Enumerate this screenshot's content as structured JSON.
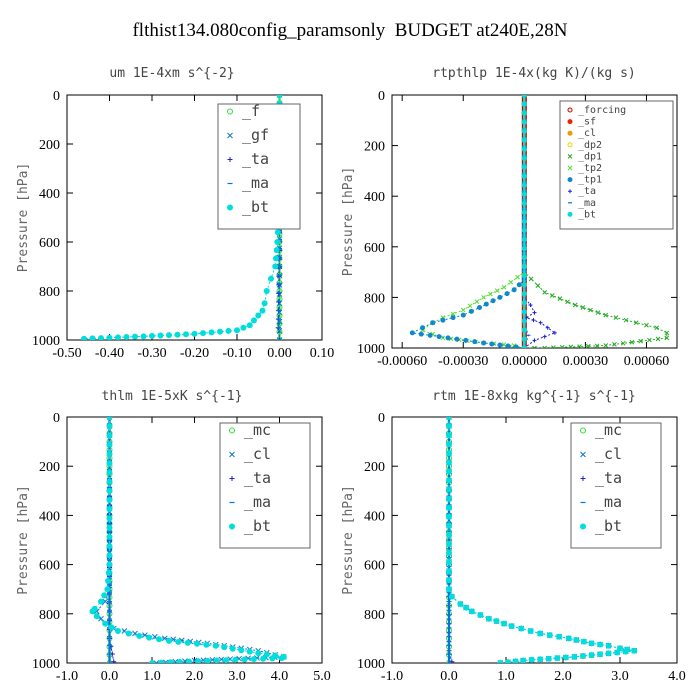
{
  "title": "flthist134.080config_paramsonly  BUDGET at240E,28N",
  "colors": {
    "f": "#33dd33",
    "gf": "#1177cc",
    "ta": "#2222cc",
    "ma": "#0077dd",
    "bt": "#00dddd",
    "mc": "#33dd33",
    "cl": "#1177cc",
    "forcing": "#cc0000",
    "sf": "#ee2200",
    "cl_sm": "#ee9900",
    "dp2": "#dddd00",
    "dp1": "#22aa22",
    "tp2": "#55dd33",
    "tp1": "#1188cc"
  },
  "chart_data": [
    {
      "type": "line",
      "title": "um  1E-4xm s^{-2}",
      "ylabel": "Pressure [hPa]",
      "xlim": [
        -0.5,
        0.1
      ],
      "ylim": [
        1000,
        0
      ],
      "xticks": [
        -0.5,
        -0.4,
        -0.3,
        -0.2,
        -0.1,
        0.0,
        0.1
      ],
      "xtick_labels": [
        "-0.50",
        "-0.40",
        "-0.30",
        "-0.20",
        "-0.10",
        "0.00",
        "0.10"
      ],
      "yticks": [
        0,
        200,
        400,
        600,
        800,
        1000
      ],
      "ytick_labels": [
        "0",
        "200",
        "400",
        "600",
        "800",
        "1000"
      ],
      "legend_position": "top-right",
      "series": [
        {
          "name": "_f",
          "color_key": "f",
          "x": [
            0,
            0,
            0,
            0,
            0,
            0,
            0,
            0,
            0,
            0,
            0
          ],
          "y": [
            0,
            100,
            200,
            300,
            400,
            500,
            600,
            700,
            800,
            900,
            1000
          ]
        },
        {
          "name": "_gf",
          "color_key": "gf",
          "x": [
            0,
            0,
            -0.002,
            -0.005,
            -0.003,
            0,
            0
          ],
          "y": [
            0,
            150,
            200,
            210,
            250,
            400,
            1000
          ]
        },
        {
          "name": "_ta",
          "color_key": "ta",
          "x": [
            0,
            0,
            -0.003,
            0
          ],
          "y": [
            0,
            600,
            950,
            1000
          ]
        },
        {
          "name": "_ma",
          "color_key": "ma",
          "x": [
            0,
            0,
            -0.002,
            0
          ],
          "y": [
            0,
            700,
            950,
            1000
          ]
        },
        {
          "name": "_bt",
          "color_key": "bt",
          "x": [
            0,
            0,
            -0.005,
            -0.01,
            -0.02,
            -0.03,
            -0.035,
            -0.04,
            -0.05,
            -0.06,
            -0.07,
            -0.1,
            -0.2,
            -0.32,
            -0.46
          ],
          "y": [
            0,
            400,
            600,
            700,
            750,
            800,
            850,
            880,
            900,
            920,
            940,
            960,
            975,
            985,
            995
          ]
        }
      ]
    },
    {
      "type": "line",
      "title": "rtpthlp  1E-4x(kg K)/(kg s)",
      "ylabel": "Pressure [hPa]",
      "xlim": [
        -0.00065,
        0.00075
      ],
      "ylim": [
        1000,
        0
      ],
      "xticks": [
        -0.0006,
        -0.0003,
        0.0,
        0.0003,
        0.0006
      ],
      "xtick_labels": [
        "-0.00060",
        "-0.00030",
        "0.00000",
        "0.00030",
        "0.00060"
      ],
      "yticks": [
        0,
        200,
        400,
        600,
        800,
        1000
      ],
      "ytick_labels": [
        "0",
        "200",
        "400",
        "600",
        "800",
        "1000"
      ],
      "legend_position": "top-right",
      "series": [
        {
          "name": "_forcing",
          "color_key": "forcing",
          "x": [
            0,
            0
          ],
          "y": [
            0,
            1000
          ]
        },
        {
          "name": "_sf",
          "color_key": "sf",
          "x": [
            0,
            0,
            0,
            0
          ],
          "y": [
            0,
            940,
            1000,
            1000
          ]
        },
        {
          "name": "_cl",
          "color_key": "cl_sm",
          "x": [
            0,
            0
          ],
          "y": [
            0,
            1000
          ]
        },
        {
          "name": "_dp2",
          "color_key": "dp2",
          "x": [
            0,
            0
          ],
          "y": [
            0,
            1000
          ]
        },
        {
          "name": "_dp1",
          "color_key": "dp1",
          "x": [
            0,
            0,
            0.0001,
            0.00025,
            0.0004,
            0.00055,
            0.00065,
            0.0007,
            0.0007,
            0.0004,
            0.0001,
            0
          ],
          "y": [
            0,
            700,
            780,
            830,
            870,
            900,
            920,
            940,
            960,
            990,
            1000,
            1000
          ]
        },
        {
          "name": "_tp2",
          "color_key": "tp2",
          "x": [
            0,
            0,
            -0.0001,
            -0.0002,
            -0.0003,
            -0.0004,
            -0.00045,
            -0.0005,
            -0.0004,
            -0.0002,
            -5e-05,
            0
          ],
          "y": [
            0,
            700,
            760,
            800,
            850,
            880,
            900,
            930,
            960,
            980,
            990,
            1000
          ]
        },
        {
          "name": "_tp1",
          "color_key": "tp1",
          "x": [
            0,
            0,
            -5e-05,
            -0.00012,
            -0.00022,
            -0.0003,
            -0.00045,
            -0.0005,
            -0.00055,
            -0.0002,
            0
          ],
          "y": [
            0,
            730,
            770,
            800,
            840,
            870,
            900,
            920,
            940,
            980,
            1000
          ]
        },
        {
          "name": "_ta",
          "color_key": "ta",
          "x": [
            0,
            0,
            3e-05,
            5e-05,
            1e-05,
            8e-05,
            0.00015,
            5e-05,
            0
          ],
          "y": [
            0,
            800,
            830,
            860,
            880,
            900,
            940,
            970,
            1000
          ]
        },
        {
          "name": "_ma",
          "color_key": "ma",
          "x": [
            0,
            0,
            2e-05,
            0
          ],
          "y": [
            0,
            900,
            950,
            1000
          ]
        },
        {
          "name": "_bt",
          "color_key": "bt",
          "x": [
            0,
            0
          ],
          "y": [
            0,
            1000
          ]
        }
      ]
    },
    {
      "type": "line",
      "title": "thlm  1E-5xK s^{-1}",
      "ylabel": "Pressure [hPa]",
      "xlim": [
        -1.0,
        5.0
      ],
      "ylim": [
        1000,
        0
      ],
      "xticks": [
        -1,
        0,
        1,
        2,
        3,
        4,
        5
      ],
      "xtick_labels": [
        "-1.0",
        "0.0",
        "1.0",
        "2.0",
        "3.0",
        "4.0",
        "5.0"
      ],
      "yticks": [
        0,
        200,
        400,
        600,
        800,
        1000
      ],
      "ytick_labels": [
        "0",
        "200",
        "400",
        "600",
        "800",
        "1000"
      ],
      "legend_position": "top-right",
      "series": [
        {
          "name": "_mc",
          "color_key": "mc",
          "x": [
            0,
            0,
            0,
            0,
            0,
            0,
            0,
            0,
            0,
            0,
            0
          ],
          "y": [
            0,
            100,
            200,
            300,
            400,
            500,
            600,
            700,
            800,
            900,
            1000
          ]
        },
        {
          "name": "_cl",
          "color_key": "cl",
          "x": [
            0,
            0,
            -0.1,
            -0.3,
            -0.2,
            0.1,
            0.6,
            1.3,
            2.3,
            3.5,
            4.1,
            2.0,
            1.1
          ],
          "y": [
            0,
            700,
            750,
            790,
            820,
            860,
            880,
            900,
            920,
            950,
            975,
            990,
            1000
          ]
        },
        {
          "name": "_ta",
          "color_key": "ta",
          "x": [
            0,
            0,
            0.1,
            0
          ],
          "y": [
            0,
            900,
            995,
            1000
          ]
        },
        {
          "name": "_ma",
          "color_key": "ma",
          "x": [
            0,
            0,
            0
          ],
          "y": [
            0,
            500,
            1000
          ]
        },
        {
          "name": "_bt",
          "color_key": "bt",
          "x": [
            0,
            0,
            -0.05,
            -0.2,
            -0.35,
            -0.4,
            -0.3,
            -0.1,
            0.2,
            0.7,
            1.4,
            2.5,
            3.5,
            4.1,
            4.05,
            1.0
          ],
          "y": [
            0,
            600,
            700,
            750,
            780,
            790,
            810,
            840,
            870,
            890,
            910,
            930,
            960,
            975,
            980,
            1000
          ]
        }
      ]
    },
    {
      "type": "line",
      "title": "rtm  1E-8xkg kg^{-1} s^{-1}",
      "ylabel": "Pressure [hPa]",
      "xlim": [
        -1.0,
        4.0
      ],
      "ylim": [
        1000,
        0
      ],
      "xticks": [
        -1,
        0,
        1,
        2,
        3,
        4
      ],
      "xtick_labels": [
        "-1.0",
        "0.0",
        "1.0",
        "2.0",
        "3.0",
        "4.0"
      ],
      "yticks": [
        0,
        200,
        400,
        600,
        800,
        1000
      ],
      "ytick_labels": [
        "0",
        "200",
        "400",
        "600",
        "800",
        "1000"
      ],
      "legend_position": "top-right",
      "series": [
        {
          "name": "_mc",
          "color_key": "mc",
          "x": [
            0,
            0,
            0,
            0,
            0,
            0,
            0,
            0,
            0,
            0,
            0
          ],
          "y": [
            0,
            100,
            200,
            300,
            400,
            500,
            600,
            700,
            800,
            900,
            1000
          ]
        },
        {
          "name": "_cl",
          "color_key": "cl",
          "x": [
            0,
            0,
            0.05,
            0.2,
            0.4,
            0.7,
            1.1,
            1.6,
            2.1,
            2.5,
            2.8,
            3.0,
            3.25,
            2.2,
            1.3,
            0.9
          ],
          "y": [
            0,
            700,
            730,
            760,
            790,
            820,
            850,
            880,
            900,
            920,
            930,
            940,
            950,
            975,
            990,
            1000
          ]
        },
        {
          "name": "_ta",
          "color_key": "ta",
          "x": [
            0,
            0,
            0.05,
            0
          ],
          "y": [
            0,
            950,
            995,
            1000
          ]
        },
        {
          "name": "_ma",
          "color_key": "ma",
          "x": [
            0,
            0,
            0
          ],
          "y": [
            0,
            500,
            1000
          ]
        },
        {
          "name": "_bt",
          "color_key": "bt",
          "x": [
            0,
            0,
            0.05,
            0.2,
            0.4,
            0.7,
            1.1,
            1.6,
            2.1,
            2.5,
            2.8,
            3.0,
            3.25,
            2.2,
            1.3,
            0.9
          ],
          "y": [
            0,
            700,
            730,
            760,
            790,
            820,
            850,
            880,
            900,
            920,
            930,
            940,
            950,
            975,
            990,
            1000
          ]
        }
      ]
    }
  ]
}
